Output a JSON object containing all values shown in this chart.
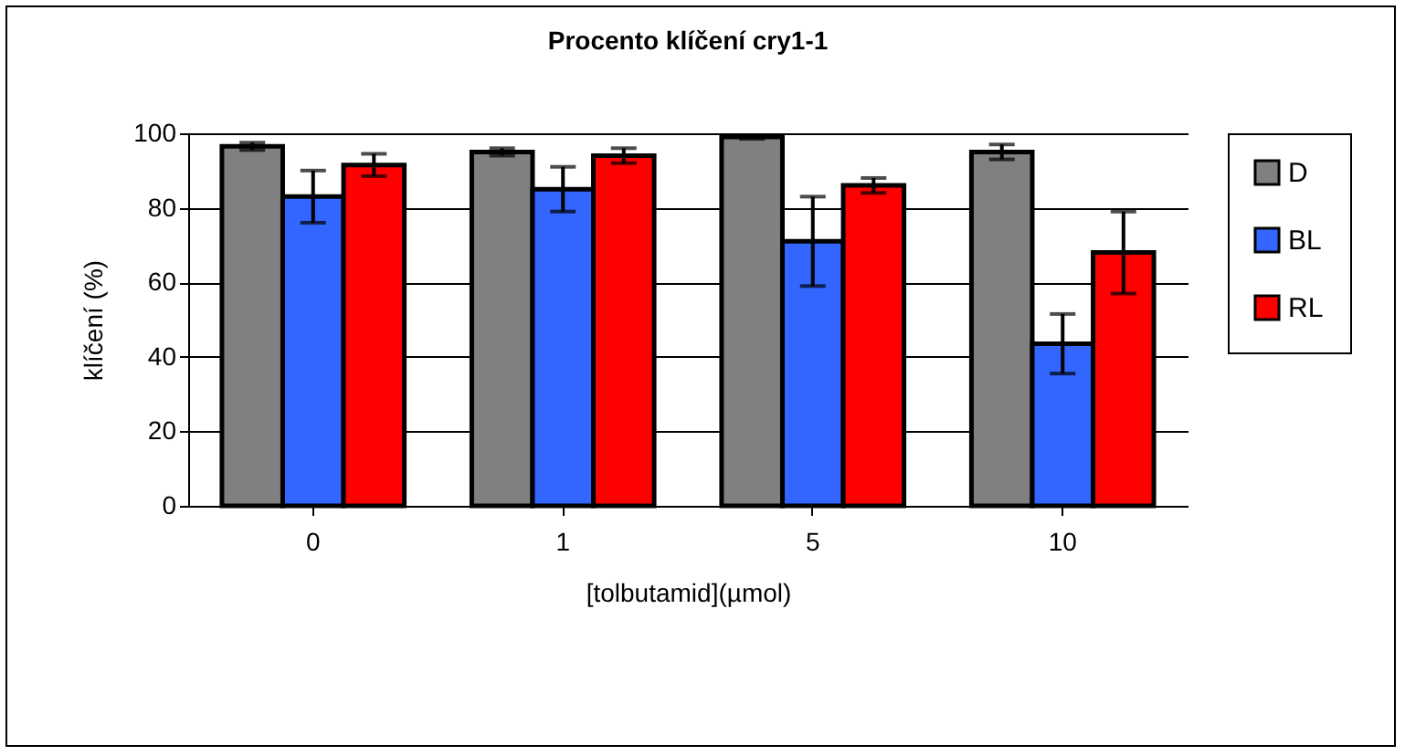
{
  "chart_data": {
    "type": "bar",
    "title": "Procento klíčení cry1-1",
    "xlabel": "[tolbutamid](µmol)",
    "ylabel": "klíčení (%)",
    "categories": [
      "0",
      "1",
      "5",
      "10"
    ],
    "series": [
      {
        "name": "D",
        "color": "#808080",
        "values": [
          96.5,
          95,
          99,
          95
        ],
        "errors": [
          [
            95.5,
            97.5
          ],
          [
            94,
            96
          ],
          [
            98.5,
            99.5
          ],
          [
            93,
            97
          ]
        ]
      },
      {
        "name": "BL",
        "color": "#3366ff",
        "values": [
          83,
          85,
          71,
          43.5
        ],
        "errors": [
          [
            76,
            90
          ],
          [
            79,
            91
          ],
          [
            59,
            83
          ],
          [
            35.5,
            51.5
          ]
        ]
      },
      {
        "name": "RL",
        "color": "#ff0000",
        "values": [
          91.5,
          94,
          86,
          68
        ],
        "errors": [
          [
            88.5,
            94.5
          ],
          [
            92,
            96
          ],
          [
            84,
            88
          ],
          [
            57,
            79
          ]
        ]
      }
    ],
    "ylim": [
      0,
      100
    ],
    "yticks": [
      0,
      20,
      40,
      60,
      80,
      100
    ],
    "grid": "y",
    "legend": "right"
  }
}
